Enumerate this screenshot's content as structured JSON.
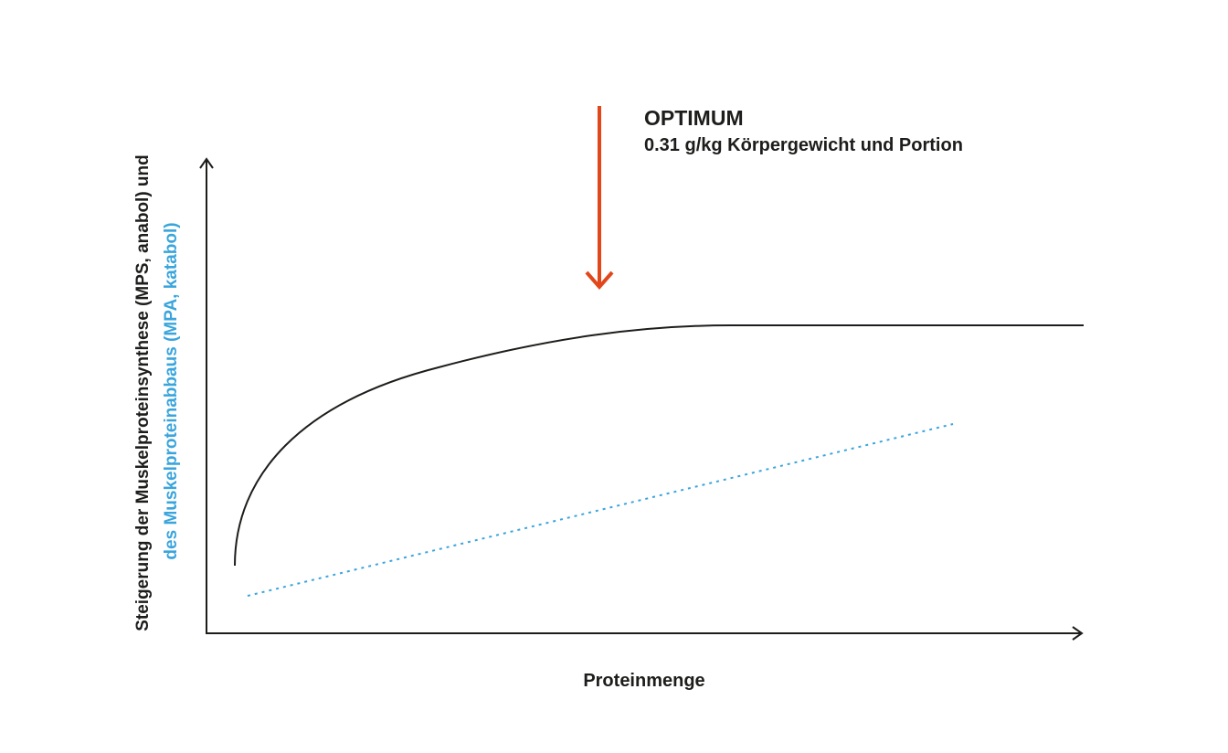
{
  "annotation": {
    "title": "OPTIMUM",
    "subtitle": "0.31 g/kg Körpergewicht und Portion"
  },
  "y_axis_label": {
    "line1": "Steigerung der Muskelproteinsynthese (MPS, anabol) und",
    "line2": "des Muskelproteinabbaus (MPA, katabol)"
  },
  "x_axis_label": "Proteinmenge"
}
